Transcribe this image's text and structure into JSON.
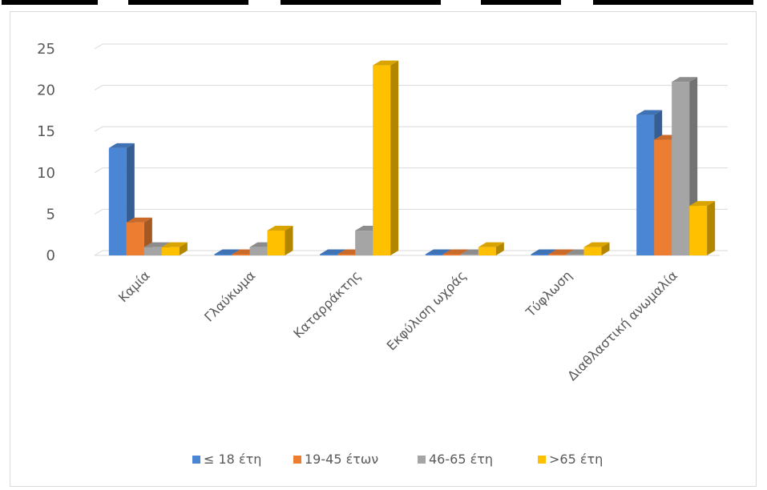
{
  "chart_data": {
    "type": "bar",
    "style": "3d-clustered-column",
    "categories": [
      "Καμία",
      "Γλαύκωμα",
      "Καταρράκτης",
      "Εκφύλιση ωχράς",
      "Τύφλωση",
      "Διαθλαστική ανωμαλία"
    ],
    "series": [
      {
        "name": "≤ 18 έτη",
        "color": "#4a86d4",
        "values": [
          13,
          0,
          0,
          0,
          0,
          17
        ]
      },
      {
        "name": "19-45 έτων",
        "color": "#ed7d31",
        "values": [
          4,
          0,
          0,
          0,
          0,
          14
        ]
      },
      {
        "name": "46-65 έτη",
        "color": "#a5a5a5",
        "values": [
          1,
          1,
          3,
          0,
          0,
          21
        ]
      },
      {
        "name": ">65 έτη",
        "color": "#ffc000",
        "values": [
          1,
          3,
          23,
          1,
          1,
          6
        ]
      }
    ],
    "ylim": [
      0,
      25
    ],
    "yticks": [
      0,
      5,
      10,
      15,
      20,
      25
    ],
    "grid": true,
    "legend": "bottom"
  }
}
